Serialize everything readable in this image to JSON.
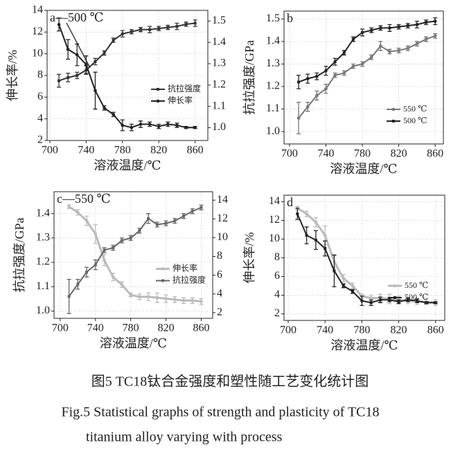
{
  "chart_data": [
    {
      "type": "line",
      "annotation": "a—500 ℃",
      "x_label": "溶液温度/℃",
      "y_label": "伸长率/%",
      "x": [
        710,
        720,
        730,
        740,
        750,
        760,
        770,
        780,
        790,
        800,
        810,
        820,
        830,
        840,
        850,
        860
      ],
      "xlim": [
        697,
        874
      ],
      "xticks": [
        700,
        740,
        780,
        820,
        860
      ],
      "ylim": [
        2,
        14
      ],
      "yticks": [
        2,
        4,
        6,
        8,
        10,
        12,
        14
      ],
      "y2lim": [
        0.94,
        1.55
      ],
      "y2ticks": [
        {
          "value": 1,
          "label": "1.0"
        },
        1.1,
        1.2,
        1.3,
        1.4,
        1.5
      ],
      "grid": true,
      "legend": "center right",
      "series": [
        {
          "name": "抗拉强度",
          "color": "#333333",
          "axis": "y2",
          "marker": "square",
          "values": [
            1.22,
            1.235,
            1.245,
            1.27,
            1.31,
            1.35,
            1.41,
            1.44,
            1.45,
            1.46,
            1.46,
            1.465,
            1.47,
            1.475,
            1.485,
            1.49
          ],
          "errors": [
            0.03,
            0.02,
            0.015,
            0.02,
            0.015,
            0.01,
            0.01,
            0.015,
            0.01,
            0.01,
            0.015,
            0.01,
            0.01,
            0.015,
            0.01,
            0.015
          ]
        },
        {
          "name": "伸长率",
          "color": "#222222",
          "marker": "circle",
          "values": [
            12.7,
            10.4,
            9.9,
            9.0,
            6.6,
            5.0,
            4.4,
            3.4,
            3.2,
            3.5,
            3.5,
            3.3,
            3.5,
            3.4,
            3.2,
            3.2
          ],
          "errors": [
            0.6,
            0.9,
            1.0,
            0.8,
            1.7,
            0.2,
            0.2,
            0.5,
            0.3,
            0.3,
            0.2,
            0.2,
            0.2,
            0.2,
            0.1,
            0.1
          ]
        }
      ]
    },
    {
      "type": "line",
      "annotation": "b",
      "x_label": "溶液温度/℃",
      "y_label": "抗拉强度/GPa",
      "x": [
        710,
        720,
        730,
        740,
        750,
        760,
        770,
        780,
        790,
        800,
        810,
        820,
        830,
        840,
        850,
        860
      ],
      "xlim": [
        694,
        869
      ],
      "xticks": [
        700,
        740,
        780,
        820,
        860
      ],
      "ylim": [
        0.945,
        1.535
      ],
      "yticks": [
        {
          "value": 1,
          "label": "1.0"
        },
        1.1,
        1.2,
        1.3,
        1.4,
        1.5
      ],
      "grid": true,
      "legend": "lower right",
      "series": [
        {
          "name": "550 ℃",
          "color": "#777777",
          "marker": "circle",
          "values": [
            1.06,
            1.11,
            1.16,
            1.19,
            1.25,
            1.26,
            1.29,
            1.3,
            1.33,
            1.38,
            1.355,
            1.36,
            1.37,
            1.39,
            1.41,
            1.425
          ],
          "errors": [
            0.07,
            0.02,
            0.02,
            0.02,
            0.01,
            0.01,
            0.01,
            0.01,
            0.01,
            0.02,
            0.01,
            0.01,
            0.01,
            0.01,
            0.01,
            0.01
          ]
        },
        {
          "name": "500 ℃",
          "color": "#222222",
          "marker": "square",
          "values": [
            1.22,
            1.235,
            1.245,
            1.27,
            1.31,
            1.35,
            1.41,
            1.44,
            1.45,
            1.46,
            1.46,
            1.465,
            1.47,
            1.475,
            1.485,
            1.49
          ],
          "errors": [
            0.03,
            0.02,
            0.015,
            0.02,
            0.015,
            0.01,
            0.01,
            0.015,
            0.01,
            0.01,
            0.015,
            0.01,
            0.01,
            0.015,
            0.01,
            0.015
          ]
        }
      ]
    },
    {
      "type": "line",
      "annotation": "c—550 ℃",
      "x_label": "溶液温度/℃",
      "y_label": "抗拉强度/GPa",
      "x": [
        710,
        720,
        730,
        740,
        750,
        760,
        770,
        780,
        790,
        800,
        810,
        820,
        830,
        840,
        850,
        860
      ],
      "xlim": [
        693,
        873
      ],
      "xticks": [
        700,
        740,
        780,
        820,
        860
      ],
      "ylim": [
        0.97,
        1.49
      ],
      "yticks": [
        {
          "value": 1,
          "label": "1.0"
        },
        1.1,
        1.2,
        1.3,
        1.4
      ],
      "y2lim": [
        1.4,
        14.9
      ],
      "y2ticks": [
        2,
        4,
        6,
        8,
        10,
        12,
        14
      ],
      "grid": true,
      "legend": "center right",
      "series": [
        {
          "name": "伸长率",
          "color": "#bbbbbb",
          "axis": "y2",
          "marker": "circle",
          "values": [
            13.3,
            12.7,
            11.8,
            10.4,
            7.6,
            5.8,
            5.0,
            3.9,
            3.7,
            3.7,
            3.6,
            3.5,
            3.4,
            3.3,
            3.3,
            3.2
          ],
          "errors": [
            0.2,
            0.3,
            0.5,
            1.0,
            0.6,
            0.4,
            0.3,
            0.2,
            0.3,
            0.4,
            0.5,
            0.4,
            0.3,
            0.3,
            0.3,
            0.3
          ]
        },
        {
          "name": "抗拉强度",
          "color": "#666666",
          "marker": "square",
          "values": [
            1.06,
            1.11,
            1.16,
            1.19,
            1.25,
            1.26,
            1.29,
            1.3,
            1.33,
            1.38,
            1.355,
            1.36,
            1.37,
            1.39,
            1.41,
            1.425
          ],
          "errors": [
            0.07,
            0.02,
            0.02,
            0.02,
            0.01,
            0.01,
            0.01,
            0.01,
            0.01,
            0.02,
            0.01,
            0.01,
            0.01,
            0.01,
            0.01,
            0.01
          ]
        }
      ]
    },
    {
      "type": "line",
      "annotation": "d",
      "x_label": "溶液温度/℃",
      "y_label": "伸长率/%",
      "x": [
        710,
        720,
        730,
        740,
        750,
        760,
        770,
        780,
        790,
        800,
        810,
        820,
        830,
        840,
        850,
        860
      ],
      "xlim": [
        695.5,
        870
      ],
      "xticks": [
        700,
        740,
        780,
        820,
        860
      ],
      "ylim": [
        1.3,
        14.7
      ],
      "yticks": [
        2,
        4,
        6,
        8,
        10,
        12,
        14
      ],
      "grid": true,
      "legend": "lower right",
      "series": [
        {
          "name": "550 ℃",
          "color": "#bbbbbb",
          "marker": "circle",
          "values": [
            13.3,
            12.7,
            11.8,
            10.4,
            7.6,
            5.8,
            5.0,
            3.9,
            3.7,
            3.7,
            3.6,
            3.5,
            3.4,
            3.3,
            3.3,
            3.2
          ],
          "errors": [
            0.2,
            0.3,
            0.5,
            1.0,
            0.6,
            0.4,
            0.3,
            0.2,
            0.3,
            0.4,
            0.5,
            0.4,
            0.3,
            0.3,
            0.3,
            0.3
          ]
        },
        {
          "name": "500 ℃",
          "color": "#222222",
          "marker": "square",
          "values": [
            12.7,
            10.4,
            9.9,
            9.0,
            6.6,
            5.0,
            4.4,
            3.4,
            3.2,
            3.5,
            3.5,
            3.3,
            3.5,
            3.4,
            3.2,
            3.2
          ],
          "errors": [
            0.6,
            0.9,
            1.0,
            0.8,
            1.7,
            0.2,
            0.2,
            0.5,
            0.3,
            0.3,
            0.2,
            0.2,
            0.2,
            0.2,
            0.1,
            0.1
          ]
        }
      ]
    }
  ],
  "caption": {
    "cn": "图5 TC18钛合金强度和塑性随工艺变化统计图",
    "en": [
      "Fig.5  Statistical graphs of strength and plasticity of TC18",
      "titanium alloy varying with process"
    ]
  }
}
